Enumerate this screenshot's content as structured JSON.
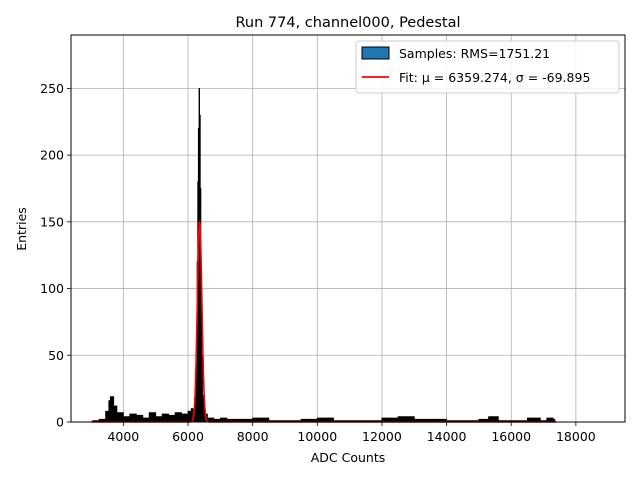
{
  "chart_data": {
    "type": "bar",
    "title": "Run 774, channel000, Pedestal",
    "xlabel": "ADC Counts",
    "ylabel": "Entries",
    "xlim": [
      2380,
      19520
    ],
    "ylim": [
      0,
      290
    ],
    "x_ticks": [
      4000,
      6000,
      8000,
      10000,
      12000,
      14000,
      16000,
      18000
    ],
    "y_ticks": [
      0,
      50,
      100,
      150,
      200,
      250
    ],
    "grid": true,
    "legend_position": "top-right",
    "series": [
      {
        "name": "Samples: RMS=1751.21",
        "kind": "histogram",
        "color": "#000000",
        "legend_swatch_color": "#1f77b4",
        "x": [
          3050,
          3250,
          3450,
          3550,
          3600,
          3700,
          3800,
          4000,
          4200,
          4400,
          4600,
          4800,
          5000,
          5200,
          5400,
          5600,
          5800,
          6000,
          6100,
          6200,
          6250,
          6280,
          6300,
          6320,
          6340,
          6360,
          6380,
          6400,
          6420,
          6450,
          6500,
          6600,
          6800,
          7000,
          7200,
          7500,
          8000,
          8500,
          9000,
          9500,
          10000,
          10500,
          11000,
          11500,
          12000,
          12500,
          13000,
          13500,
          14000,
          14500,
          15000,
          15300,
          15600,
          16000,
          16500,
          16900,
          17100,
          17300
        ],
        "values": [
          1,
          2,
          8,
          16,
          19,
          12,
          7,
          4,
          6,
          5,
          3,
          7,
          4,
          6,
          5,
          7,
          6,
          8,
          10,
          18,
          45,
          120,
          180,
          220,
          250,
          230,
          175,
          100,
          50,
          20,
          6,
          3,
          2,
          3,
          2,
          2,
          3,
          1,
          1,
          2,
          3,
          1,
          1,
          1,
          3,
          4,
          2,
          2,
          1,
          1,
          2,
          4,
          1,
          1,
          3,
          1,
          3,
          2
        ]
      },
      {
        "name": "Fit: μ = 6359.274, σ = -69.895",
        "kind": "fit",
        "color": "#ff0000",
        "mu": 6359.274,
        "sigma": -69.895,
        "amplitude": 151,
        "x_range": [
          3000,
          17400
        ]
      }
    ]
  }
}
